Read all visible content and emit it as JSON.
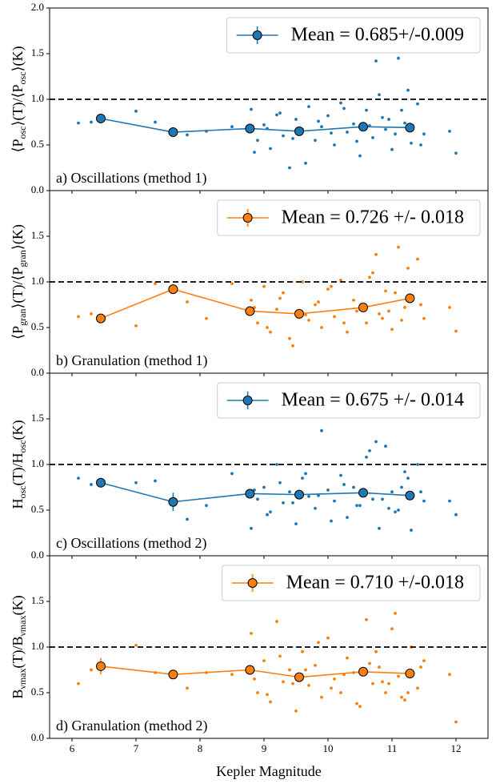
{
  "chart_data": [
    {
      "type": "scatter",
      "ylabel": [
        "⟨P",
        "osc",
        "⟩(T)/⟨P",
        "osc",
        "⟩(K)"
      ],
      "annotation": "a) Oscillations (method 1)",
      "color": "#1f77b4",
      "scatter": {
        "x": [
          6.1,
          6.3,
          7.0,
          7.3,
          7.8,
          8.1,
          8.5,
          8.8,
          8.9,
          9.0,
          9.1,
          9.2,
          9.3,
          9.4,
          9.5,
          9.6,
          9.7,
          9.8,
          9.9,
          10.0,
          10.1,
          10.2,
          10.3,
          10.4,
          10.5,
          10.6,
          10.7,
          10.8,
          10.9,
          11.0,
          11.1,
          11.2,
          11.3,
          11.4,
          11.5,
          8.85,
          9.05,
          9.25,
          9.45,
          9.65,
          9.85,
          10.05,
          10.25,
          10.45,
          10.65,
          10.85,
          11.05,
          11.25,
          11.45,
          11.9,
          12.0,
          10.75,
          10.95,
          11.15
        ],
        "y": [
          0.74,
          0.75,
          0.87,
          0.75,
          0.61,
          0.65,
          0.7,
          0.89,
          0.55,
          0.72,
          0.46,
          0.83,
          0.6,
          0.25,
          0.78,
          0.67,
          0.92,
          0.55,
          0.7,
          0.82,
          0.5,
          0.96,
          0.64,
          0.73,
          0.38,
          0.88,
          0.58,
          1.05,
          0.67,
          0.45,
          1.45,
          0.74,
          0.52,
          0.95,
          0.62,
          0.42,
          0.68,
          0.85,
          0.57,
          0.3,
          0.76,
          0.63,
          0.9,
          0.54,
          0.71,
          0.8,
          0.62,
          1.1,
          0.5,
          0.65,
          0.41,
          1.42,
          0.78,
          0.88
        ]
      },
      "series": [
        {
          "name": "Mean = 0.685+/-0.009",
          "color": "#1f77b4",
          "x": [
            6.45,
            7.58,
            8.78,
            9.55,
            10.55,
            11.28
          ],
          "values": [
            0.79,
            0.64,
            0.68,
            0.65,
            0.7,
            0.69
          ],
          "errors": [
            0.03,
            0.03,
            0.04,
            0.03,
            0.03,
            0.03
          ]
        }
      ],
      "reference_line": 1.0,
      "ylim": [
        0,
        2
      ],
      "yticks": [
        {
          "value": 0,
          "label": "0.0"
        },
        0.5,
        {
          "value": 1,
          "label": "1.0"
        },
        1.5,
        {
          "value": 2,
          "label": "2.0"
        }
      ],
      "legend": "upper right"
    },
    {
      "type": "scatter",
      "ylabel": [
        "⟨P",
        "gran",
        "⟩(T)/⟨P",
        "gran",
        "⟩(K)"
      ],
      "annotation": "b) Granulation (method 1)",
      "color": "#ff7f0e",
      "scatter": {
        "x": [
          6.1,
          6.3,
          7.0,
          7.3,
          7.8,
          8.1,
          8.5,
          8.8,
          8.9,
          9.0,
          9.1,
          9.2,
          9.3,
          9.4,
          9.5,
          9.6,
          9.7,
          9.8,
          9.9,
          10.0,
          10.1,
          10.2,
          10.3,
          10.4,
          10.5,
          10.6,
          10.7,
          10.8,
          10.9,
          11.0,
          11.1,
          11.2,
          11.3,
          11.4,
          11.5,
          8.85,
          9.05,
          9.25,
          9.45,
          9.65,
          9.85,
          10.05,
          10.25,
          10.45,
          10.65,
          10.85,
          11.05,
          11.25,
          11.45,
          11.9,
          12.0,
          10.75,
          10.95,
          11.15
        ],
        "y": [
          0.62,
          0.65,
          0.52,
          0.98,
          0.78,
          0.6,
          0.98,
          0.8,
          0.55,
          0.95,
          0.45,
          0.7,
          0.88,
          0.38,
          0.66,
          1.0,
          0.58,
          0.75,
          0.5,
          0.92,
          0.62,
          1.02,
          0.45,
          0.8,
          0.7,
          0.55,
          1.1,
          0.65,
          0.9,
          0.48,
          1.38,
          0.72,
          0.85,
          1.25,
          0.6,
          0.72,
          0.5,
          0.82,
          0.3,
          0.64,
          0.78,
          0.95,
          0.55,
          0.68,
          1.05,
          0.6,
          0.88,
          1.15,
          0.75,
          0.72,
          0.46,
          1.3,
          0.68,
          0.58
        ]
      },
      "series": [
        {
          "name": "Mean = 0.726 +/- 0.018",
          "color": "#ff7f0e",
          "x": [
            6.45,
            7.58,
            8.78,
            9.55,
            10.55,
            11.28
          ],
          "values": [
            0.6,
            0.92,
            0.68,
            0.65,
            0.72,
            0.82
          ],
          "errors": [
            0.03,
            0.04,
            0.04,
            0.04,
            0.04,
            0.05
          ]
        }
      ],
      "reference_line": 1.0,
      "ylim": [
        0,
        2
      ],
      "yticks": [
        {
          "value": 0,
          "label": "0.0"
        },
        0.5,
        {
          "value": 1,
          "label": "1.0"
        },
        1.5
      ],
      "legend": "upper right"
    },
    {
      "type": "scatter",
      "ylabel": [
        "H",
        "osc",
        "(T)/H",
        "osc",
        "(K)"
      ],
      "annotation": "c) Oscillations (method 2)",
      "color": "#1f77b4",
      "scatter": {
        "x": [
          6.1,
          6.3,
          7.0,
          7.3,
          7.8,
          8.1,
          8.5,
          8.8,
          8.9,
          9.0,
          9.1,
          9.2,
          9.3,
          9.4,
          9.5,
          9.6,
          9.7,
          9.8,
          9.9,
          10.0,
          10.1,
          10.2,
          10.3,
          10.4,
          10.5,
          10.6,
          10.7,
          10.8,
          10.9,
          11.0,
          11.1,
          11.2,
          11.3,
          11.4,
          11.5,
          8.85,
          9.05,
          9.25,
          9.45,
          9.65,
          9.85,
          10.05,
          10.25,
          10.45,
          10.65,
          10.85,
          11.05,
          11.25,
          11.45,
          11.9,
          12.0,
          10.75,
          10.95,
          11.15
        ],
        "y": [
          0.85,
          0.78,
          0.8,
          0.82,
          0.4,
          0.55,
          0.9,
          0.3,
          0.62,
          0.75,
          0.48,
          1.0,
          0.58,
          0.7,
          0.35,
          0.85,
          0.65,
          0.52,
          1.37,
          0.72,
          0.6,
          0.88,
          0.42,
          0.75,
          0.55,
          1.08,
          0.62,
          0.3,
          1.2,
          0.7,
          0.5,
          0.92,
          0.28,
          1.0,
          0.6,
          0.72,
          0.45,
          0.8,
          0.58,
          0.9,
          0.66,
          0.38,
          0.78,
          0.55,
          1.15,
          0.62,
          0.48,
          0.85,
          0.7,
          0.6,
          0.45,
          1.25,
          0.52,
          0.75
        ]
      },
      "series": [
        {
          "name": "Mean = 0.675 +/- 0.014",
          "color": "#1f77b4",
          "x": [
            6.45,
            7.58,
            8.78,
            9.55,
            10.55,
            11.28
          ],
          "values": [
            0.8,
            0.59,
            0.68,
            0.67,
            0.69,
            0.66
          ],
          "errors": [
            0.03,
            0.1,
            0.04,
            0.03,
            0.05,
            0.03
          ]
        }
      ],
      "reference_line": 1.0,
      "ylim": [
        0,
        2
      ],
      "yticks": [
        {
          "value": 0,
          "label": "0.0"
        },
        0.5,
        {
          "value": 1,
          "label": "1.0"
        },
        1.5
      ],
      "legend": "upper right"
    },
    {
      "type": "scatter",
      "ylabel": [
        "B",
        "νmax",
        "(T)/B",
        "νmax",
        "(K)"
      ],
      "annotation": "d) Granulation (method 2)",
      "color": "#ff7f0e",
      "scatter": {
        "x": [
          6.1,
          6.3,
          7.0,
          7.3,
          7.8,
          8.1,
          8.5,
          8.8,
          8.9,
          9.0,
          9.1,
          9.2,
          9.3,
          9.4,
          9.5,
          9.6,
          9.7,
          9.8,
          9.9,
          10.0,
          10.1,
          10.2,
          10.3,
          10.4,
          10.5,
          10.6,
          10.7,
          10.8,
          10.9,
          11.0,
          11.1,
          11.2,
          11.3,
          11.4,
          11.5,
          8.85,
          9.05,
          9.25,
          9.45,
          9.65,
          9.85,
          10.05,
          10.25,
          10.45,
          10.65,
          10.85,
          11.05,
          11.25,
          11.45,
          11.9,
          12.0,
          10.75,
          10.95,
          11.15
        ],
        "y": [
          0.6,
          0.75,
          1.02,
          0.72,
          0.55,
          0.72,
          0.7,
          1.15,
          0.5,
          0.85,
          0.4,
          1.28,
          0.62,
          0.75,
          0.3,
          0.95,
          0.58,
          0.8,
          0.45,
          1.1,
          0.65,
          0.5,
          0.88,
          0.72,
          0.35,
          1.3,
          0.6,
          0.78,
          0.5,
          1.2,
          0.68,
          0.42,
          1.0,
          0.55,
          0.85,
          0.65,
          0.48,
          0.9,
          0.6,
          0.75,
          1.05,
          0.55,
          0.7,
          0.38,
          0.82,
          0.62,
          1.37,
          0.5,
          0.78,
          0.7,
          0.18,
          0.95,
          0.6,
          0.45
        ]
      },
      "series": [
        {
          "name": "Mean = 0.710 +/-0.018",
          "color": "#ff7f0e",
          "x": [
            6.45,
            7.58,
            8.78,
            9.55,
            10.55,
            11.28
          ],
          "values": [
            0.79,
            0.7,
            0.75,
            0.67,
            0.73,
            0.71
          ],
          "errors": [
            0.09,
            0.04,
            0.04,
            0.04,
            0.04,
            0.04
          ]
        }
      ],
      "reference_line": 1.0,
      "ylim": [
        0,
        2
      ],
      "yticks": [
        {
          "value": 0,
          "label": "0.0"
        },
        0.5,
        {
          "value": 1,
          "label": "1.0"
        },
        1.5
      ],
      "legend": "upper right",
      "xlabel": "Kepler Magnitude",
      "xlim": [
        5.65,
        12.5
      ],
      "xticks": [
        6,
        7,
        8,
        9,
        10,
        11,
        12
      ]
    }
  ]
}
